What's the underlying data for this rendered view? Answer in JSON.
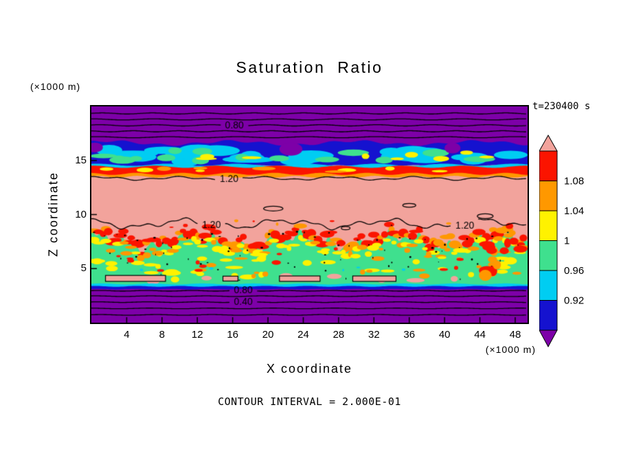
{
  "title": "Saturation Ratio",
  "timestamp": "t=230400 s",
  "x_axis": {
    "label": "X coordinate",
    "units": "(×1000 m)"
  },
  "y_axis": {
    "label": "Z coordinate",
    "units": "(×1000 m)"
  },
  "footnote": "CONTOUR INTERVAL = 2.000E-01",
  "chart_data": {
    "type": "heatmap",
    "title": "Saturation Ratio",
    "xlabel": "X coordinate (×1000 m)",
    "ylabel": "Z coordinate (×1000 m)",
    "time_seconds": 230400,
    "contour_interval": 0.2,
    "x_ticks": [
      4,
      8,
      12,
      16,
      20,
      24,
      28,
      32,
      36,
      40,
      44,
      48
    ],
    "y_ticks": [
      5,
      10,
      15
    ],
    "xlim": [
      0,
      49.4
    ],
    "ylim": [
      0,
      20
    ],
    "visible_contour_labels": [
      "0.80",
      "1.20",
      "1.20",
      "1.20",
      "0.80",
      "0.40"
    ],
    "colorbar": {
      "tick_labels": [
        "1.08",
        "1.04",
        "1",
        "0.96",
        "0.92"
      ],
      "bands": [
        {
          "value_range": "> 1.12",
          "color": "#f2a39c"
        },
        {
          "value_range": "1.08 - 1.12",
          "color": "#fb1400"
        },
        {
          "value_range": "1.04 - 1.08",
          "color": "#ff9800"
        },
        {
          "value_range": "1.00 - 1.04",
          "color": "#fff200"
        },
        {
          "value_range": "0.96 - 1.00",
          "color": "#3fe08e"
        },
        {
          "value_range": "0.92 - 0.96",
          "color": "#00cdf2"
        },
        {
          "value_range": "0.88 - 0.92",
          "color": "#1512cf"
        },
        {
          "value_range": "< 0.88",
          "color": "#7d00a8"
        }
      ]
    },
    "regions_summary": [
      {
        "z_kilo_m": [
          16.6,
          20
        ],
        "value": "< 0.88, contours 0.80 and lower",
        "color": "#7d00a8"
      },
      {
        "z_kilo_m": [
          14.5,
          16.6
        ],
        "value": "0.88 - 1.00 mottled cold layer",
        "color": "#1512cf"
      },
      {
        "z_kilo_m": [
          13.5,
          14.5
        ],
        "value": "1.04 - 1.12 thin warm strip",
        "color": "#fb1400"
      },
      {
        "z_kilo_m": [
          8.5,
          13.5
        ],
        "value": "> 1.12 with 1.20 contours",
        "color": "#f2a39c"
      },
      {
        "z_kilo_m": [
          7.0,
          8.6
        ],
        "value": "1.00 - 1.12 ragged fringe",
        "color": "#ff9800"
      },
      {
        "z_kilo_m": [
          3.6,
          7.2
        ],
        "value": "0.96 - 1.00 mottled layer",
        "color": "#3fe08e"
      },
      {
        "z_kilo_m": [
          0,
          3.4
        ],
        "value": "< 0.88, contours 0.80, 0.40",
        "color": "#7d00a8"
      }
    ],
    "field": {
      "xlim": [
        0,
        49.4
      ],
      "ylim": [
        0,
        20
      ],
      "paint": [
        {
          "op": "fill",
          "color": "#f2a39c"
        },
        {
          "op": "band",
          "top": [
            20.4,
            []
          ],
          "bottom": [
            16.5,
            [
              [
                0.18,
                0.45,
                0.7
              ],
              [
                0.1,
                1.6,
                2.0
              ]
            ]
          ],
          "color": "#7d00a8"
        },
        {
          "op": "band",
          "top": [
            16.62,
            [
              [
                0.18,
                0.45,
                0.7
              ],
              [
                0.1,
                1.6,
                2.0
              ]
            ]
          ],
          "bottom": [
            14.45,
            [
              [
                0.12,
                0.7,
                1.0
              ]
            ]
          ],
          "color": "#1512cf"
        },
        {
          "op": "mottle",
          "seed": 7,
          "count": 26,
          "x": [
            0.6,
            48.8
          ],
          "y": [
            14.85,
            16.1
          ],
          "rx": [
            1.0,
            3.0
          ],
          "ry": [
            0.25,
            0.5
          ],
          "colors": [
            "#00cdf2"
          ]
        },
        {
          "op": "mottle",
          "seed": 8,
          "count": 15,
          "x": [
            1,
            48.5
          ],
          "y": [
            15.0,
            15.9
          ],
          "rx": [
            0.6,
            1.8
          ],
          "ry": [
            0.18,
            0.38
          ],
          "colors": [
            "#3fe08e"
          ]
        },
        {
          "op": "mottle",
          "seed": 9,
          "count": 9,
          "x": [
            2,
            48
          ],
          "y": [
            15.1,
            15.8
          ],
          "rx": [
            0.4,
            1.2
          ],
          "ry": [
            0.12,
            0.28
          ],
          "colors": [
            "#fff200"
          ]
        },
        {
          "op": "blobs",
          "color": "#7d00a8",
          "items": [
            [
              22.6,
              16.05,
              1.3,
              0.6
            ],
            [
              40.9,
              16.15,
              0.9,
              0.5
            ],
            [
              0.4,
              16.2,
              0.9,
              0.45
            ]
          ]
        },
        {
          "op": "band",
          "top": [
            14.6,
            [
              [
                0.1,
                0.8,
                1.0
              ]
            ]
          ],
          "bottom": [
            14.28,
            [
              [
                0.1,
                0.9,
                1.4
              ]
            ]
          ],
          "color": "#00cdf2"
        },
        {
          "op": "band",
          "top": [
            14.42,
            [
              [
                0.1,
                0.9,
                1.4
              ]
            ]
          ],
          "bottom": [
            13.68,
            [
              [
                0.1,
                1.2,
                1.8
              ]
            ]
          ],
          "color": "#fb1400"
        },
        {
          "op": "mottle",
          "seed": 12,
          "count": 10,
          "x": [
            1,
            48
          ],
          "y": [
            13.9,
            14.3
          ],
          "rx": [
            0.5,
            1.4
          ],
          "ry": [
            0.1,
            0.22
          ],
          "colors": [
            "#fff200",
            "#ff9800"
          ]
        },
        {
          "op": "band",
          "top": [
            13.76,
            [
              [
                0.1,
                1.2,
                1.8
              ]
            ]
          ],
          "bottom": [
            13.5,
            [
              [
                0.08,
                1.4,
                0.6
              ]
            ]
          ],
          "color": "#ff9800"
        },
        {
          "op": "band",
          "top": [
            7.5,
            [
              [
                0.55,
                0.55,
                1.3
              ],
              [
                0.35,
                1.9,
                0.4
              ],
              [
                0.28,
                3.7,
                2.1
              ],
              [
                0.12,
                7.3,
                0.9
              ]
            ]
          ],
          "bottom": [
            3.52,
            [
              [
                0.05,
                1.1,
                0.3
              ]
            ]
          ],
          "color": "#3fe08e"
        },
        {
          "op": "fringe",
          "edge": [
            7.62,
            [
              [
                0.55,
                0.55,
                1.3
              ],
              [
                0.35,
                1.9,
                0.4
              ],
              [
                0.28,
                3.7,
                2.1
              ],
              [
                0.12,
                7.3,
                0.9
              ]
            ]
          ],
          "seed": 5,
          "step": 0.42,
          "jitter": [
            -0.1,
            0.55
          ],
          "rx": [
            0.3,
            0.85
          ],
          "ry": [
            0.16,
            0.4
          ],
          "colors": [
            "#fb1400",
            "#fb1400",
            "#ff9800"
          ]
        },
        {
          "op": "fringe",
          "edge": [
            7.1,
            [
              [
                0.55,
                0.55,
                1.3
              ],
              [
                0.35,
                1.9,
                0.4
              ],
              [
                0.28,
                3.7,
                2.1
              ]
            ]
          ],
          "seed": 6,
          "step": 0.6,
          "jitter": [
            -0.4,
            0.15
          ],
          "rx": [
            0.25,
            0.7
          ],
          "ry": [
            0.12,
            0.3
          ],
          "colors": [
            "#ff9800",
            "#fff200",
            "#fff200"
          ]
        },
        {
          "op": "fringe",
          "edge": [
            7.7,
            [
              [
                0.55,
                0.55,
                1.3
              ],
              [
                0.35,
                1.9,
                0.4
              ],
              [
                0.28,
                3.7,
                2.1
              ],
              [
                0.12,
                7.3,
                0.9
              ]
            ]
          ],
          "seed": 18,
          "step": 1.3,
          "jitter": [
            -0.35,
            0.4
          ],
          "rx": [
            0.05,
            0.16
          ],
          "ry": [
            0.04,
            0.1
          ],
          "colors": [
            "#000000"
          ]
        },
        {
          "op": "mottle",
          "seed": 21,
          "count": 38,
          "x": [
            0.5,
            48.9
          ],
          "y": [
            4.0,
            6.8
          ],
          "rx": [
            0.3,
            1.1
          ],
          "ry": [
            0.12,
            0.3
          ],
          "colors": [
            "#fff200"
          ]
        },
        {
          "op": "mottle",
          "seed": 22,
          "count": 20,
          "x": [
            0.5,
            48.9
          ],
          "y": [
            4.1,
            6.9
          ],
          "rx": [
            0.25,
            0.8
          ],
          "ry": [
            0.1,
            0.25
          ],
          "colors": [
            "#ff9800"
          ]
        },
        {
          "op": "mottle",
          "seed": 23,
          "count": 13,
          "x": [
            1,
            48.5
          ],
          "y": [
            4.2,
            7.0
          ],
          "rx": [
            0.2,
            0.6
          ],
          "ry": [
            0.1,
            0.22
          ],
          "colors": [
            "#fb1400"
          ]
        },
        {
          "op": "mottle",
          "seed": 24,
          "count": 8,
          "x": [
            2,
            47
          ],
          "y": [
            3.8,
            4.5
          ],
          "rx": [
            0.4,
            1.1
          ],
          "ry": [
            0.12,
            0.28
          ],
          "colors": [
            "#f2a39c"
          ]
        },
        {
          "op": "mottle",
          "seed": 25,
          "count": 42,
          "x": [
            0.5,
            48.9
          ],
          "y": [
            3.9,
            6.7
          ],
          "rx": [
            0.04,
            0.13
          ],
          "ry": [
            0.04,
            0.1
          ],
          "colors": [
            "#000000"
          ]
        },
        {
          "op": "mottle",
          "seed": 26,
          "count": 6,
          "x": [
            3,
            46
          ],
          "y": [
            4.0,
            5.6
          ],
          "rx": [
            0.1,
            0.3
          ],
          "ry": [
            0.06,
            0.15
          ],
          "colors": [
            "#00cdf2"
          ]
        },
        {
          "op": "mottle",
          "seed": 27,
          "count": 16,
          "x": [
            44.6,
            48.6
          ],
          "y": [
            4.0,
            7.6
          ],
          "rx": [
            0.3,
            0.9
          ],
          "ry": [
            0.25,
            0.55
          ],
          "colors": [
            "#fb1400",
            "#ff9800",
            "#fb1400",
            "#fff200"
          ]
        },
        {
          "op": "mottle",
          "seed": 29,
          "count": 8,
          "x": [
            8,
            42
          ],
          "y": [
            8.7,
            9.5
          ],
          "rx": [
            0.08,
            0.3
          ],
          "ry": [
            0.06,
            0.16
          ],
          "colors": [
            "#fb1400",
            "#ff9800"
          ]
        },
        {
          "op": "rects",
          "fill": "#f2a39c",
          "stroke": "#000000",
          "items": [
            [
              1.6,
              3.82,
              6.8,
              0.55
            ],
            [
              21.3,
              3.82,
              4.6,
              0.5
            ],
            [
              29.6,
              3.82,
              4.9,
              0.5
            ],
            [
              14.9,
              3.85,
              1.7,
              0.45
            ]
          ]
        },
        {
          "op": "band",
          "top": [
            3.58,
            [
              [
                0.05,
                1.1,
                0.3
              ]
            ]
          ],
          "bottom": [
            3.32,
            [
              [
                0.04,
                1.3,
                1.1
              ]
            ]
          ],
          "color": "#00cdf2"
        },
        {
          "op": "band",
          "top": [
            3.36,
            [
              [
                0.04,
                1.3,
                1.1
              ]
            ]
          ],
          "bottom": [
            3.06,
            [
              [
                0.03,
                1.5,
                0.5
              ]
            ]
          ],
          "color": "#1512cf"
        },
        {
          "op": "band",
          "top": [
            3.1,
            [
              [
                0.03,
                1.5,
                0.5
              ]
            ]
          ],
          "bottom": [
            -0.5,
            []
          ],
          "color": "#7d00a8"
        },
        {
          "op": "contour",
          "y": 19.35,
          "waves": [
            [
              0.05,
              1.1,
              0.2
            ]
          ]
        },
        {
          "op": "contour",
          "y": 18.8,
          "waves": [
            [
              0.05,
              0.9,
              1.5
            ]
          ]
        },
        {
          "op": "contour",
          "y": 18.25,
          "waves": [
            [
              0.06,
              1.0,
              0.6
            ]
          ],
          "text": "0.80",
          "labels": [
            {
              "x": 16.2
            }
          ]
        },
        {
          "op": "contour",
          "y": 17.7,
          "waves": [
            [
              0.05,
              1.2,
              2.2
            ]
          ]
        },
        {
          "op": "contour",
          "y": 17.15,
          "waves": [
            [
              0.05,
              0.8,
              0.9
            ]
          ]
        },
        {
          "op": "contour",
          "y": 13.35,
          "waves": [
            [
              0.12,
              0.7,
              0.9
            ],
            [
              0.07,
              1.9,
              1.7
            ]
          ],
          "text": "1.20",
          "labels": [
            {
              "x": 15.6
            }
          ]
        },
        {
          "op": "contour",
          "y": 9.15,
          "waves": [
            [
              0.3,
              0.55,
              2.1
            ],
            [
              0.18,
              1.3,
              0.6
            ],
            [
              0.1,
              2.9,
              1.4
            ]
          ],
          "text": "1.20",
          "labels": [
            {
              "x": 13.6
            },
            {
              "x": 42.3
            }
          ]
        },
        {
          "op": "loop",
          "items": [
            [
              20.6,
              10.55,
              1.1,
              0.22
            ],
            [
              36.0,
              10.85,
              0.75,
              0.18
            ],
            [
              44.6,
              9.85,
              0.9,
              0.22
            ],
            [
              28.8,
              8.75,
              0.5,
              0.15
            ]
          ]
        },
        {
          "op": "contour",
          "y": 2.95,
          "waves": [
            [
              0.03,
              1.2,
              0.4
            ]
          ],
          "text": "0.80",
          "labels": [
            {
              "x": 17.2
            }
          ]
        },
        {
          "op": "contour",
          "y": 2.45,
          "waves": [
            [
              0.03,
              1.0,
              1.1
            ]
          ]
        },
        {
          "op": "contour",
          "y": 1.9,
          "waves": [
            [
              0.03,
              1.1,
              0.8
            ]
          ],
          "text": "0.40",
          "labels": [
            {
              "x": 17.2
            }
          ]
        },
        {
          "op": "contour",
          "y": 1.32,
          "waves": [
            [
              0.03,
              0.9,
              1.9
            ]
          ]
        },
        {
          "op": "contour",
          "y": 0.72,
          "waves": [
            [
              0.03,
              1.0,
              0.5
            ]
          ]
        }
      ]
    }
  }
}
